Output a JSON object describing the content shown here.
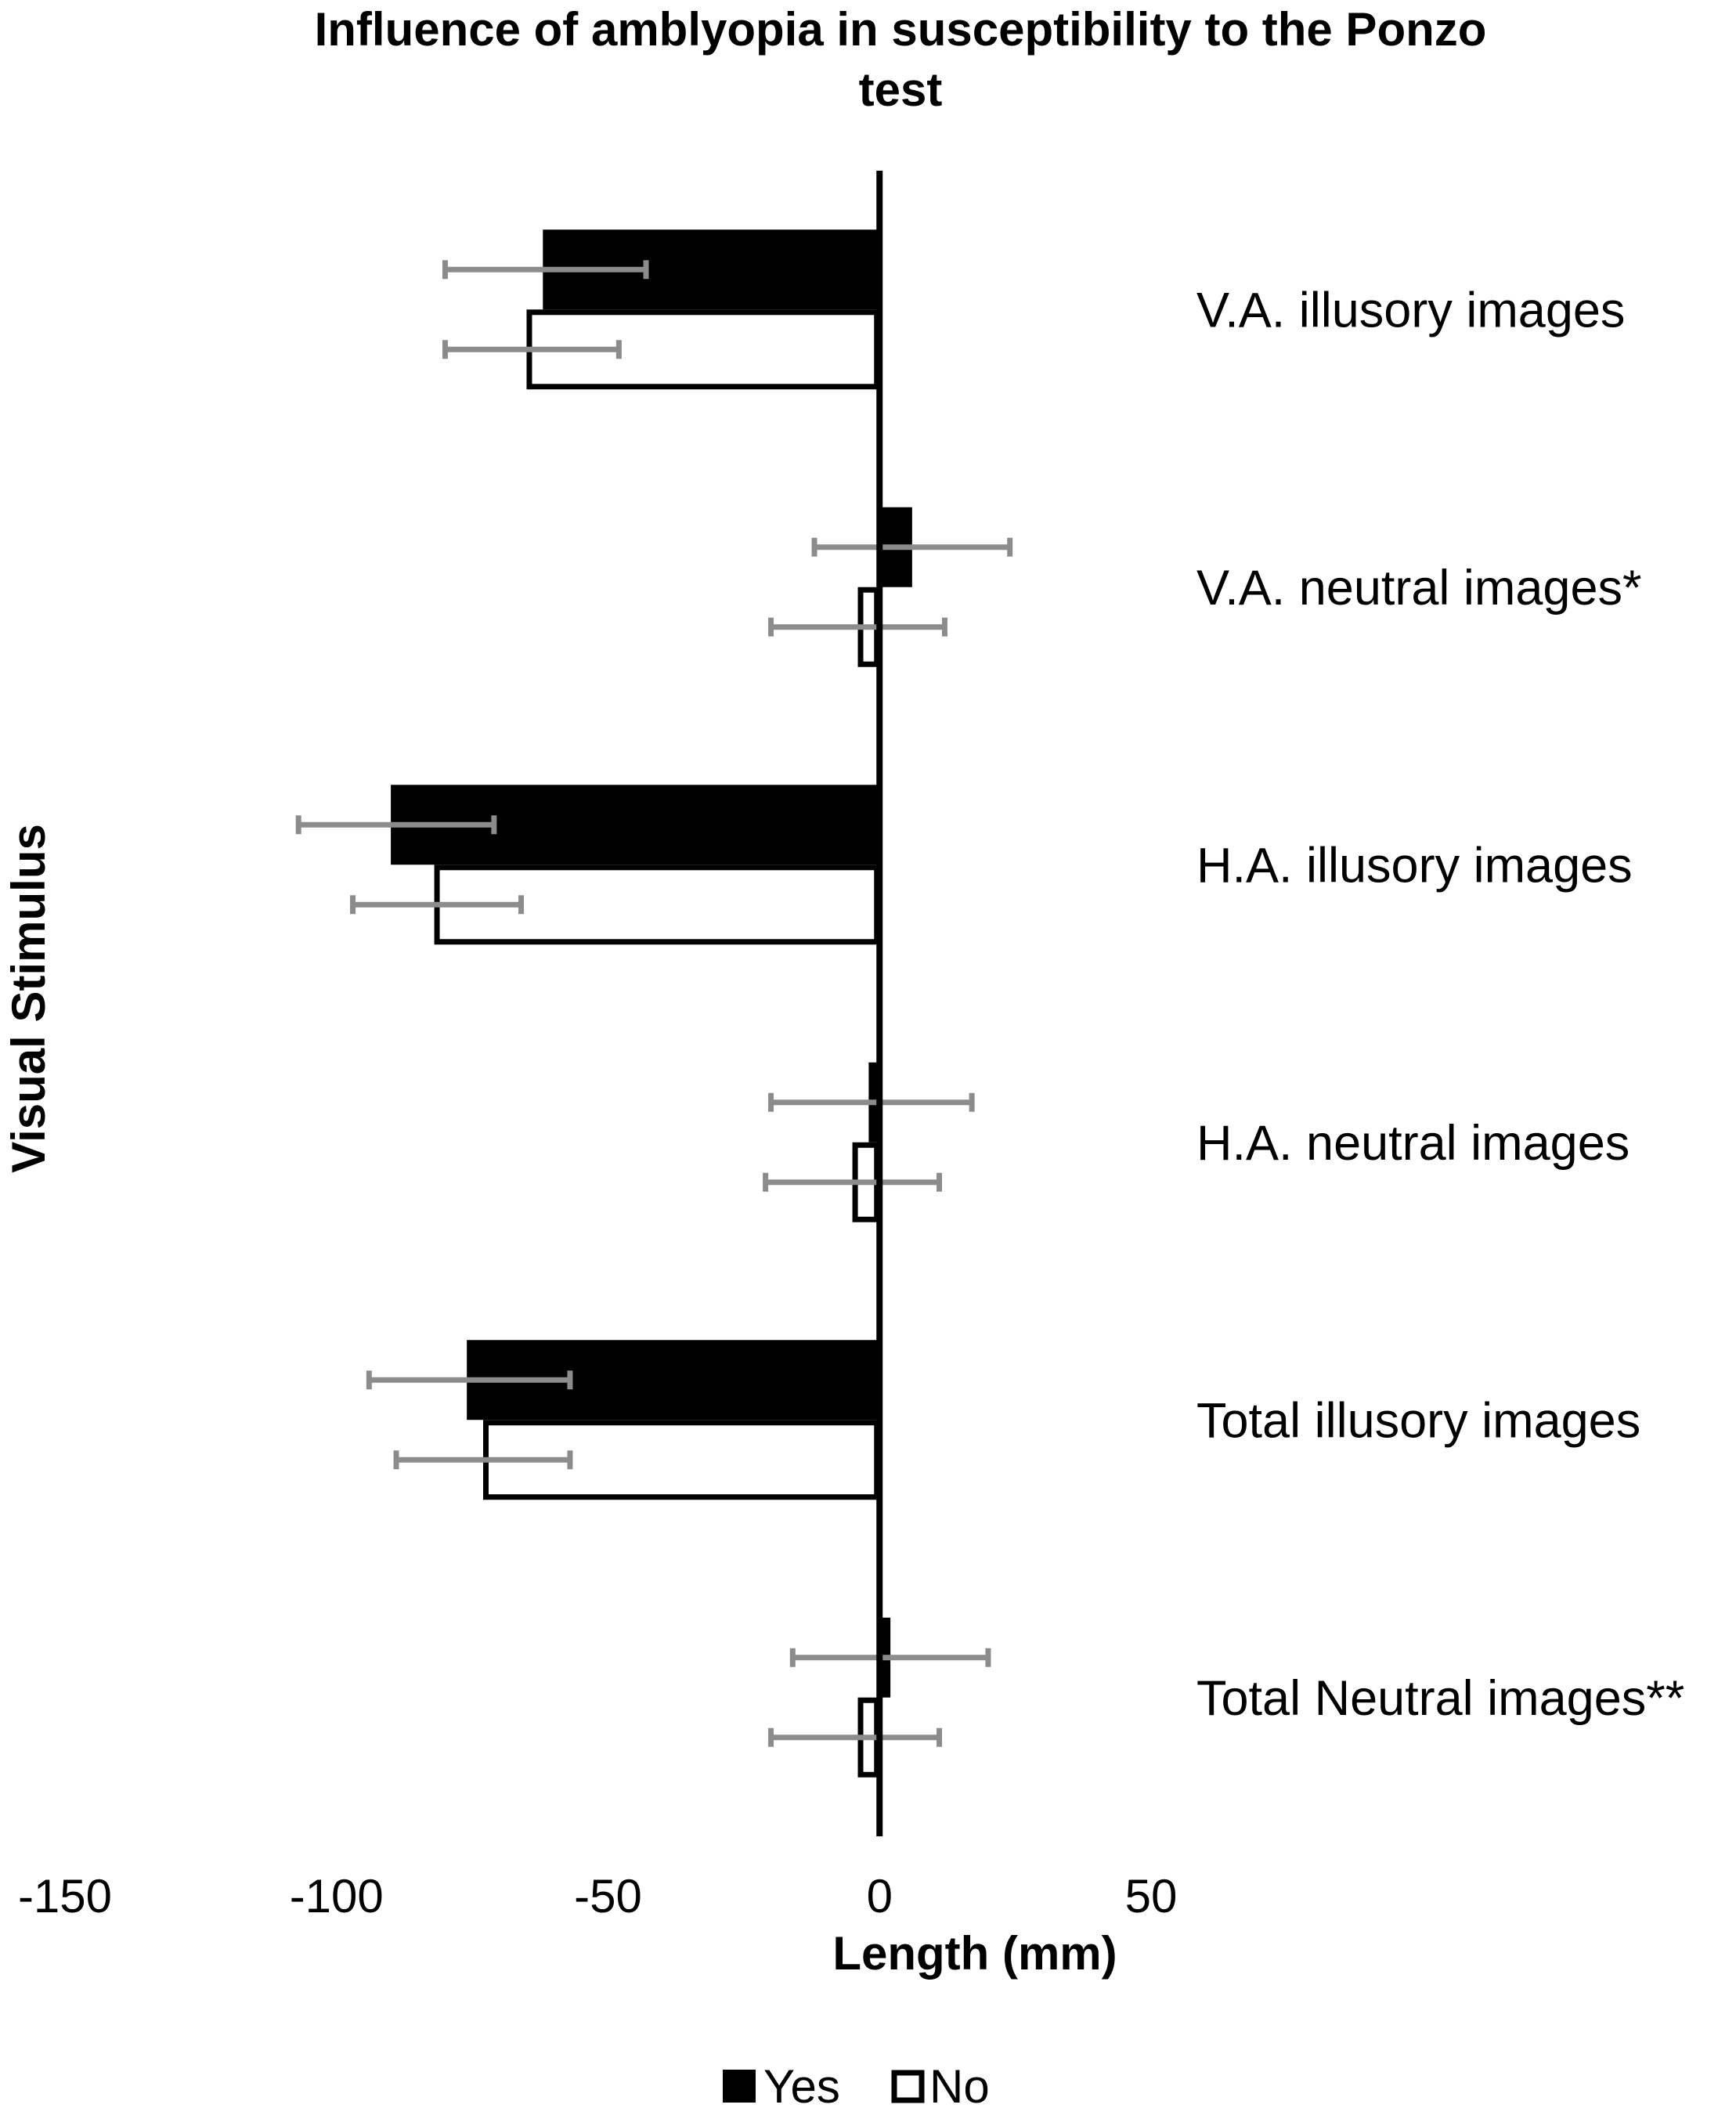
{
  "chart_data": {
    "type": "bar",
    "orientation": "horizontal",
    "title": "Influence of amblyopia in susceptibility to the Ponzo test",
    "title_lines": [
      "Influence of amblyopia in susceptibility to the Ponzo",
      "test"
    ],
    "xlabel": "Length (mm)",
    "ylabel": "Visual Stimulus",
    "xlim": [
      -150,
      50
    ],
    "xticks": [
      -150,
      -100,
      -50,
      0,
      50
    ],
    "grid": false,
    "legend_position": "bottom",
    "categories": [
      "V.A. illusory images",
      "V.A. neutral images*",
      "H.A. illusory images",
      "H.A. neutral images",
      "Total illusory images",
      "Total Neutral images**"
    ],
    "series": [
      {
        "name": "Yes",
        "style": "filled",
        "color": "#000000",
        "values": [
          -62,
          6,
          -90,
          -2,
          -76,
          2
        ],
        "error_low": [
          -80,
          -12,
          -107,
          -20,
          -94,
          -16
        ],
        "error_high": [
          -43,
          24,
          -71,
          17,
          -57,
          20
        ]
      },
      {
        "name": "No",
        "style": "outline",
        "color": "#000000",
        "values": [
          -65,
          -4,
          -82,
          -5,
          -73,
          -4
        ],
        "error_low": [
          -80,
          -20,
          -97,
          -21,
          -89,
          -20
        ],
        "error_high": [
          -48,
          12,
          -66,
          11,
          -57,
          11
        ]
      }
    ],
    "error_bar_color": "#8c8c8c"
  }
}
